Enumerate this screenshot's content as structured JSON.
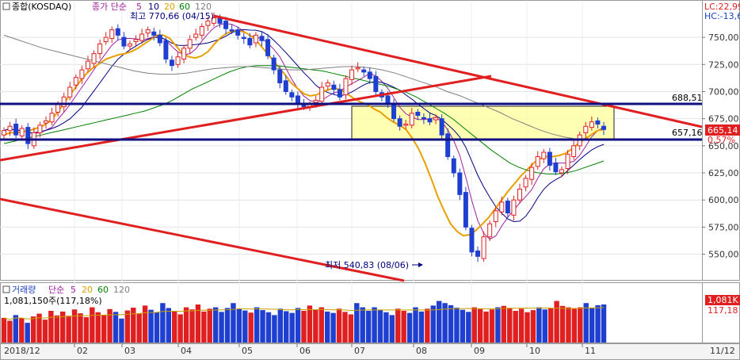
{
  "chart_data": [
    {
      "type": "candlestick",
      "series_title": "종합(KOSDAQ)",
      "ma_label": "종가 단순",
      "ma_periods": [
        "5",
        "10",
        "20",
        "60",
        "120"
      ],
      "x_ticks": [
        "2018/12",
        "02",
        "03",
        "04",
        "05",
        "06",
        "07",
        "08",
        "09",
        "10",
        "11",
        "11/12"
      ],
      "y_ticks": [
        750,
        725,
        700,
        675,
        650,
        625,
        600,
        575,
        550
      ],
      "y_tick_labels": [
        "750,00",
        "725,00",
        "700,00",
        "675,00",
        "650,00",
        "625,00",
        "600,00",
        "575,00",
        "550,00"
      ],
      "ylim": [
        527,
        783
      ],
      "high_label": "최고 770,66 (04/15)",
      "high_value": 770.66,
      "low_label": "최저 540,83 (08/06)",
      "low_value": 540.83,
      "resistance": {
        "value": 688.51,
        "label": "688,51"
      },
      "support": {
        "value": 657.16,
        "label": "657,16"
      },
      "current_price_label": "665,14",
      "change_label": "0,57%",
      "lc_label": "LC:22,99",
      "hc_label": "HC:-13,6",
      "closes": [
        664,
        668,
        660,
        666,
        652,
        662,
        669,
        673,
        680,
        688,
        695,
        704,
        713,
        720,
        728,
        735,
        744,
        750,
        757,
        752,
        742,
        744,
        748,
        753,
        757,
        752,
        745,
        730,
        724,
        732,
        740,
        748,
        753,
        760,
        765,
        768,
        763,
        758,
        756,
        752,
        749,
        743,
        752,
        747,
        733,
        720,
        708,
        700,
        695,
        690,
        686,
        688,
        692,
        704,
        708,
        702,
        695,
        712,
        720,
        722,
        718,
        712,
        700,
        695,
        690,
        675,
        668,
        670,
        680,
        678,
        675,
        672,
        676,
        660,
        640,
        625,
        605,
        575,
        552,
        548,
        566,
        578,
        590,
        598,
        588,
        600,
        610,
        620,
        630,
        640,
        644,
        632,
        626,
        628,
        642,
        650,
        660,
        668,
        672,
        670,
        665
      ],
      "ma_series": [
        {
          "name": "20",
          "color": "#e8a000",
          "values": [
            660,
            662,
            662,
            663,
            664,
            666,
            668,
            672,
            678,
            686,
            694,
            702,
            710,
            717,
            722,
            726,
            730,
            732,
            734,
            735,
            737,
            740,
            744,
            748,
            752,
            752,
            749,
            742,
            735,
            732,
            731,
            733,
            737,
            744,
            750,
            754,
            756,
            756,
            754,
            750,
            744,
            737,
            730,
            723,
            716,
            708,
            703,
            698,
            696,
            697,
            700,
            702,
            703,
            701,
            697,
            693,
            690,
            688,
            684,
            681,
            676,
            672,
            669,
            665,
            657,
            647,
            634,
            619,
            603,
            590,
            578,
            571,
            567,
            568,
            572,
            578,
            584,
            592,
            600,
            608,
            615,
            622,
            628,
            634,
            638,
            640,
            640,
            641,
            643,
            647,
            652,
            656,
            660,
            664,
            665
          ]
        },
        {
          "name": "60",
          "color": "#008000",
          "values": [
            652,
            654,
            656,
            658,
            660,
            662,
            664,
            666,
            668,
            670,
            672,
            674,
            676,
            678,
            680,
            682,
            685,
            688,
            692,
            697,
            702,
            706,
            710,
            714,
            718,
            721,
            723,
            724,
            724,
            724,
            723,
            722,
            721,
            720,
            719,
            717,
            715,
            713,
            711,
            709,
            707,
            705,
            702,
            699,
            695,
            690,
            685,
            680,
            674,
            667,
            660,
            653,
            646,
            640,
            634,
            630,
            627,
            625,
            624,
            624,
            625,
            627,
            630,
            633,
            636
          ]
        },
        {
          "name": "120",
          "color": "#808080",
          "values": [
            752,
            748,
            744,
            740,
            737,
            734,
            731,
            728,
            725,
            722,
            719,
            717,
            716,
            716,
            717,
            719,
            721,
            722,
            723,
            723,
            722,
            721,
            720,
            720,
            721,
            722,
            723,
            723,
            722,
            720,
            717,
            713,
            709,
            705,
            700,
            696,
            691,
            686,
            681,
            675,
            670,
            665,
            661,
            658,
            656,
            655,
            655
          ]
        }
      ],
      "trendlines": [
        "downtrend-upper",
        "uptrend-lower",
        "downtrend-lower"
      ]
    },
    {
      "type": "bar",
      "series_title": "거래량",
      "ma_label": "단순",
      "ma_periods": [
        "5",
        "20",
        "60",
        "120"
      ],
      "volume_readout": "1,081,150주(117,18%)",
      "current_volume_label": "1,081K",
      "current_volume_value": 1081,
      "ma_value_label": "117,18",
      "unit": "K shares",
      "ylim": [
        0,
        1350
      ],
      "values": [
        700,
        620,
        780,
        690,
        560,
        740,
        820,
        650,
        900,
        770,
        880,
        760,
        940,
        830,
        720,
        1000,
        860,
        780,
        950,
        870,
        680,
        910,
        990,
        830,
        1050,
        930,
        860,
        1120,
        980,
        890,
        800,
        1000,
        940,
        1080,
        880,
        960,
        1000,
        870,
        980,
        1120,
        960,
        910,
        850,
        1000,
        920,
        860,
        780,
        960,
        890,
        840,
        980,
        900,
        1050,
        930,
        1000,
        880,
        840,
        960,
        870,
        800,
        1120,
        1000,
        900,
        1000,
        930,
        860,
        780,
        960,
        900,
        840,
        1000,
        880,
        960,
        1050,
        1180,
        1120,
        1060,
        990,
        930,
        870,
        1000,
        960,
        880,
        940,
        1000,
        1040,
        980,
        900,
        960,
        860,
        920,
        1000,
        940,
        980,
        1180,
        1040,
        1000,
        960,
        1000,
        1120,
        980,
        1060,
        1081
      ]
    }
  ]
}
